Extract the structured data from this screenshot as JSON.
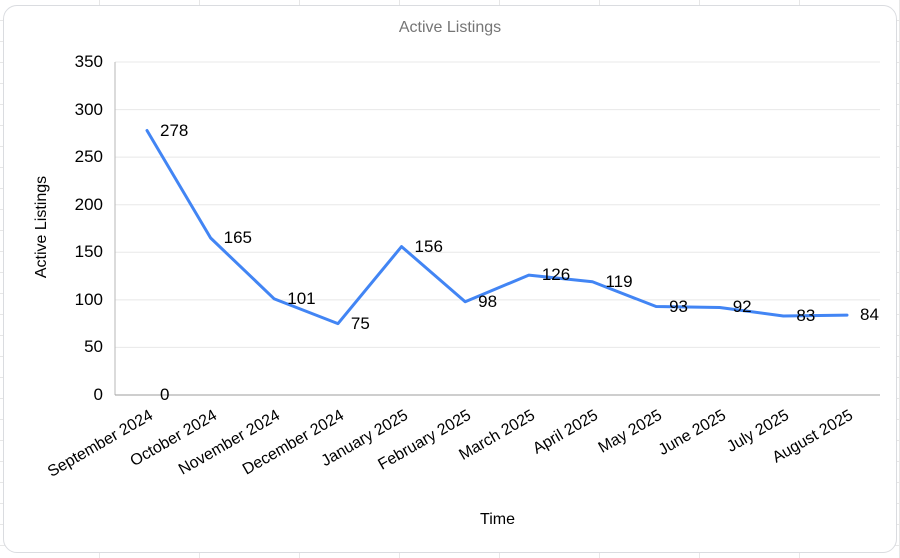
{
  "chart_data": {
    "type": "line",
    "title": "Active Listings",
    "xlabel": "Time",
    "ylabel": "Active Listings",
    "categories": [
      "September 2024",
      "October 2024",
      "November 2024",
      "December 2024",
      "January 2025",
      "February 2025",
      "March 2025",
      "April 2025",
      "May 2025",
      "June 2025",
      "July 2025",
      "August 2025"
    ],
    "series": [
      {
        "name": "Active Listings",
        "color": "#4285f4",
        "values": [
          278,
          165,
          101,
          75,
          156,
          98,
          126,
          119,
          93,
          92,
          83,
          84
        ]
      }
    ],
    "extra_point_labels": [
      {
        "category": "September 2024",
        "value": 0,
        "label": "0"
      }
    ],
    "y_ticks": [
      0,
      50,
      100,
      150,
      200,
      250,
      300,
      350
    ],
    "ylim": [
      0,
      350
    ],
    "x_tick_rotation_deg": -30,
    "grid": "horizontal",
    "legend_position": "none",
    "data_labels_visible": true
  },
  "colors": {
    "series_line": "#4285f4",
    "title_text": "#757575",
    "axis_text": "#000000",
    "gridline": "#e8e8e8",
    "x_axis_line": "#9e9e9e",
    "y_axis_line": "#b7b7b7",
    "card_border": "#dadce0",
    "card_background": "#ffffff",
    "sheet_gridline": "#e7e7e7"
  }
}
